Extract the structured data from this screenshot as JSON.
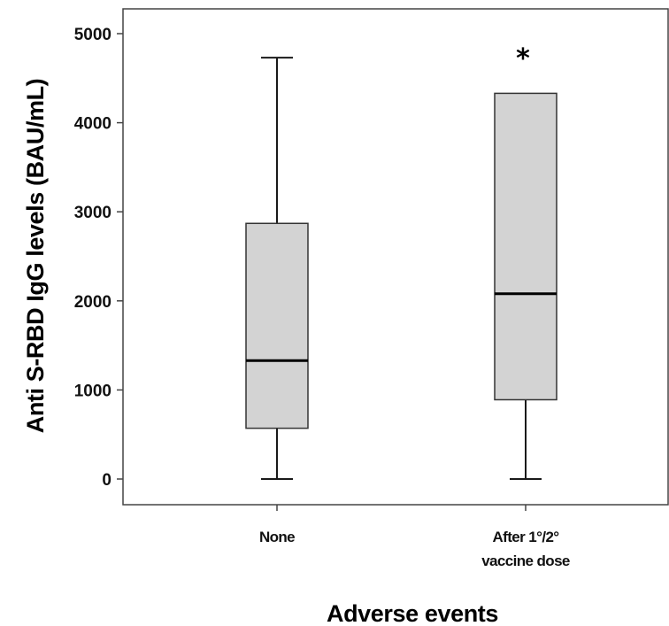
{
  "chart_data": {
    "type": "box",
    "xlabel": "Adverse events",
    "ylabel": "Anti S-RBD IgG levels (BAU/mL)",
    "yticks": [
      0,
      1000,
      2000,
      3000,
      4000,
      5000
    ],
    "ylim": [
      -250,
      5300
    ],
    "grid": false,
    "legend": "none",
    "box_fill": "#d3d3d3",
    "groups": [
      {
        "label_lines": [
          "None"
        ],
        "min": 0,
        "q1": 570,
        "median": 1330,
        "q3": 2870,
        "max": 4730,
        "outliers": []
      },
      {
        "label_lines": [
          "After 1°/2°",
          "vaccine dose"
        ],
        "min": 0,
        "q1": 890,
        "median": 2080,
        "q3": 4330,
        "max": null,
        "outliers": [
          4820
        ]
      }
    ],
    "outlier_marker": "*"
  }
}
